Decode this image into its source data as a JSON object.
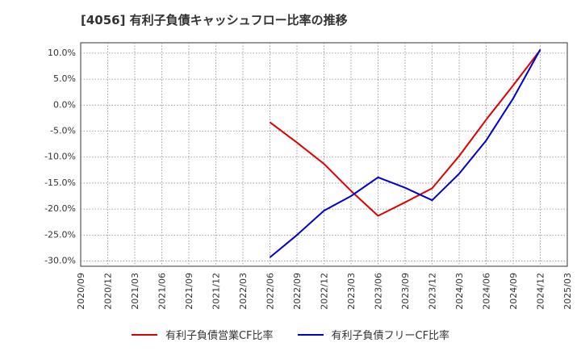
{
  "chart_data": {
    "type": "line",
    "title": "[4056]  有利子負債キャッシュフロー比率の推移",
    "xlabel": "",
    "ylabel": "",
    "x": [
      "2020/09",
      "2020/12",
      "2021/03",
      "2021/06",
      "2021/09",
      "2021/12",
      "2022/03",
      "2022/06",
      "2022/09",
      "2022/12",
      "2023/03",
      "2023/06",
      "2023/09",
      "2023/12",
      "2024/03",
      "2024/06",
      "2024/09",
      "2024/12",
      "2025/03"
    ],
    "ylim": [
      -31,
      12
    ],
    "yticks": [
      10,
      5,
      0,
      -5,
      -10,
      -15,
      -20,
      -25,
      -30
    ],
    "ytick_labels": [
      "10.0%",
      "5.0%",
      "0.0%",
      "-5.0%",
      "-10.0%",
      "-15.0%",
      "-20.0%",
      "-25.0%",
      "-30.0%"
    ],
    "grid": true,
    "legend_position": "bottom",
    "series": [
      {
        "name": "有利子負債営業CF比率",
        "color": "#dd0000",
        "values": [
          null,
          null,
          null,
          null,
          null,
          null,
          null,
          -3.3,
          -7.2,
          -11.3,
          -16.5,
          -21.3,
          -18.7,
          -16.0,
          -9.8,
          -2.8,
          3.8,
          10.6,
          null
        ]
      },
      {
        "name": "有利子負債フリーCF比率",
        "color": "#0000cc",
        "values": [
          null,
          null,
          null,
          null,
          null,
          null,
          null,
          -29.3,
          -25.0,
          -20.3,
          -17.5,
          -13.9,
          -15.9,
          -18.3,
          -13.2,
          -6.8,
          1.3,
          10.7,
          null
        ]
      }
    ]
  }
}
